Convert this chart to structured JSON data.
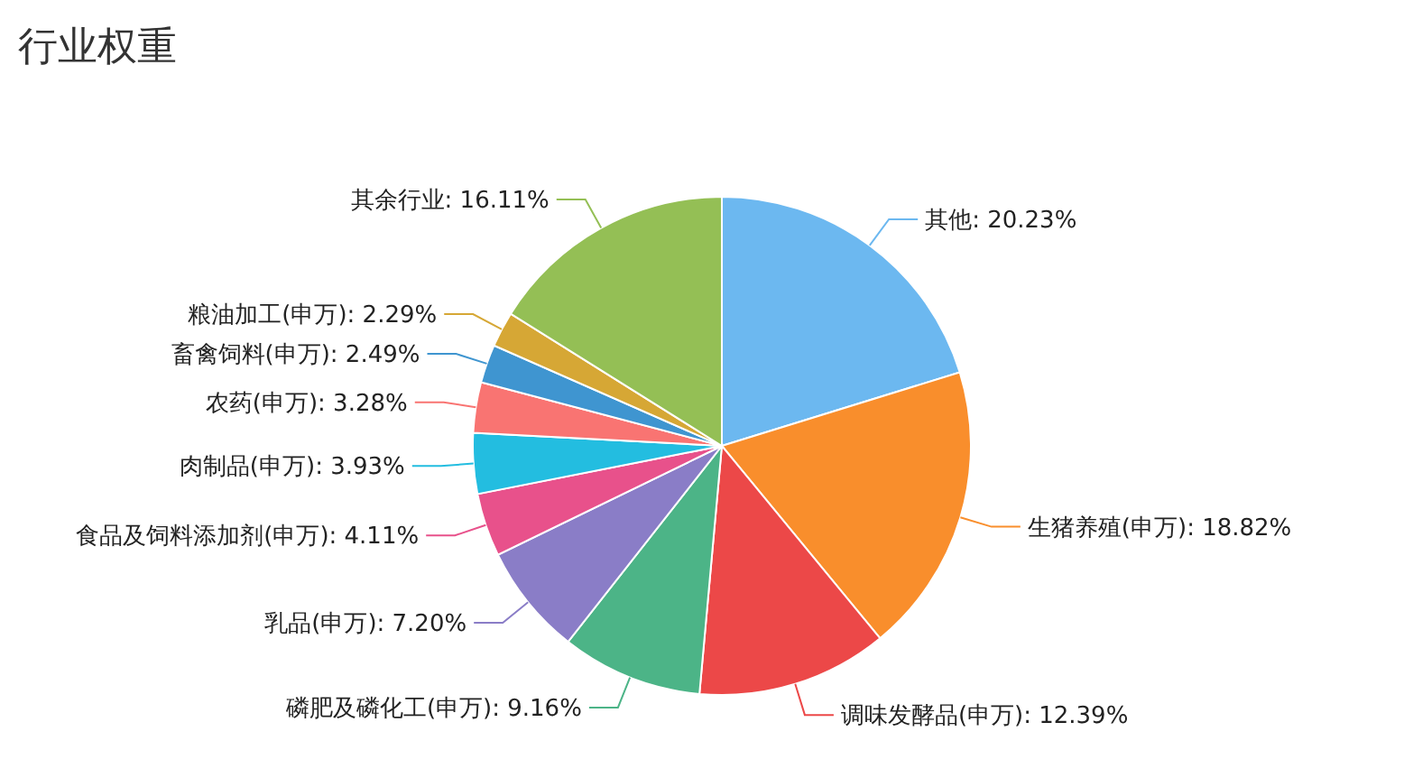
{
  "chart_data": {
    "type": "pie",
    "title": "行业权重",
    "categories": [
      "其他",
      "生猪养殖(申万)",
      "调味发酵品(申万)",
      "磷肥及磷化工(申万)",
      "乳品(申万)",
      "食品及饲料添加剂(申万)",
      "肉制品(申万)",
      "农药(申万)",
      "畜禽饲料(申万)",
      "粮油加工(申万)",
      "其余行业"
    ],
    "values": [
      20.23,
      18.82,
      12.39,
      9.16,
      7.2,
      4.11,
      3.93,
      3.28,
      2.49,
      2.29,
      16.11
    ],
    "value_labels": [
      "20.23%",
      "18.82%",
      "12.39%",
      "9.16%",
      "7.20%",
      "4.11%",
      "3.93%",
      "3.28%",
      "2.49%",
      "2.29%",
      "16.11%"
    ],
    "colors": [
      "#6cb8f0",
      "#f98e2c",
      "#ec4848",
      "#4cb487",
      "#8a7dc7",
      "#e8518b",
      "#23bde0",
      "#f97472",
      "#3f95d0",
      "#d6a735",
      "#94bf55"
    ]
  }
}
